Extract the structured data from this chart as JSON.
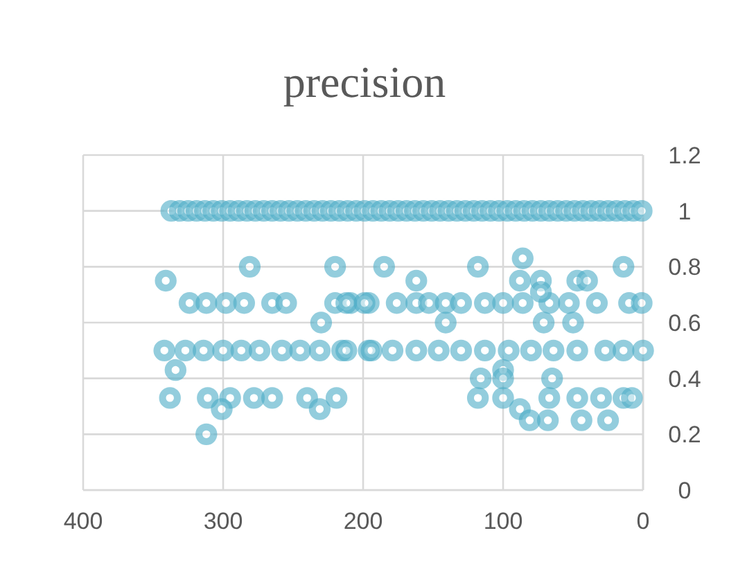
{
  "chart_data": {
    "type": "scatter",
    "title": "precision",
    "xlim": [
      400,
      0
    ],
    "xticks": [
      400,
      300,
      200,
      100,
      0
    ],
    "ylim": [
      0,
      1.2
    ],
    "yticks": [
      0,
      0.2,
      0.4,
      0.6,
      0.8,
      1,
      1.2
    ],
    "grid": true,
    "marker": "circle",
    "series": [
      {
        "color": "#4bacc6",
        "x": [
          337,
          331,
          325,
          319,
          313,
          307,
          301,
          295,
          289,
          283,
          277,
          271,
          265,
          259,
          253,
          247,
          241,
          235,
          229,
          223,
          217,
          211,
          205,
          199,
          193,
          187,
          181,
          175,
          169,
          163,
          157,
          151,
          145,
          139,
          133,
          127,
          121,
          115,
          109,
          103,
          97,
          91,
          85,
          79,
          73,
          67,
          61,
          55,
          49,
          43,
          37,
          31,
          25,
          19,
          13,
          7,
          1,
          281,
          220,
          185,
          118,
          14,
          86,
          341,
          162,
          88,
          73,
          47,
          40,
          324,
          312,
          298,
          285,
          265,
          255,
          220,
          209,
          196,
          212,
          199,
          176,
          162,
          153,
          141,
          130,
          113,
          100,
          86,
          67,
          53,
          33,
          10,
          1,
          73,
          230,
          141,
          71,
          50,
          342,
          327,
          314,
          300,
          287,
          274,
          258,
          245,
          231,
          215,
          196,
          212,
          194,
          179,
          162,
          146,
          130,
          113,
          96,
          80,
          64,
          47,
          27,
          14,
          0,
          334,
          100,
          116,
          100,
          65,
          338,
          311,
          295,
          278,
          265,
          240,
          219,
          118,
          100,
          67,
          47,
          30,
          14,
          8,
          301,
          231,
          88,
          312,
          81,
          68,
          44,
          25
        ],
        "values": [
          1,
          1,
          1,
          1,
          1,
          1,
          1,
          1,
          1,
          1,
          1,
          1,
          1,
          1,
          1,
          1,
          1,
          1,
          1,
          1,
          1,
          1,
          1,
          1,
          1,
          1,
          1,
          1,
          1,
          1,
          1,
          1,
          1,
          1,
          1,
          1,
          1,
          1,
          1,
          1,
          1,
          1,
          1,
          1,
          1,
          1,
          1,
          1,
          1,
          1,
          1,
          1,
          1,
          1,
          1,
          1,
          1,
          0.8,
          0.8,
          0.8,
          0.8,
          0.8,
          0.83,
          0.75,
          0.75,
          0.75,
          0.75,
          0.75,
          0.75,
          0.67,
          0.67,
          0.67,
          0.67,
          0.67,
          0.67,
          0.67,
          0.67,
          0.67,
          0.67,
          0.67,
          0.67,
          0.67,
          0.67,
          0.67,
          0.67,
          0.67,
          0.67,
          0.67,
          0.67,
          0.67,
          0.67,
          0.67,
          0.67,
          0.71,
          0.6,
          0.6,
          0.6,
          0.6,
          0.5,
          0.5,
          0.5,
          0.5,
          0.5,
          0.5,
          0.5,
          0.5,
          0.5,
          0.5,
          0.5,
          0.5,
          0.5,
          0.5,
          0.5,
          0.5,
          0.5,
          0.5,
          0.5,
          0.5,
          0.5,
          0.5,
          0.5,
          0.5,
          0.5,
          0.43,
          0.43,
          0.4,
          0.4,
          0.4,
          0.33,
          0.33,
          0.33,
          0.33,
          0.33,
          0.33,
          0.33,
          0.33,
          0.33,
          0.33,
          0.33,
          0.33,
          0.33,
          0.33,
          0.29,
          0.29,
          0.29,
          0.2,
          0.25,
          0.25,
          0.25,
          0.25
        ]
      }
    ]
  }
}
